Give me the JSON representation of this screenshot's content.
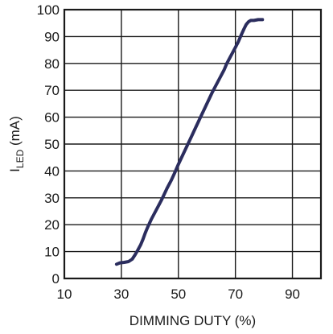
{
  "chart_data": {
    "type": "line",
    "title": "",
    "xlabel": "DIMMING DUTY (%)",
    "ylabel": {
      "main": "I",
      "subscript": "LED",
      "suffix": " (mA)"
    },
    "xlim": [
      10,
      100
    ],
    "ylim": [
      0,
      100
    ],
    "x_ticks": [
      10,
      30,
      50,
      70,
      90
    ],
    "x_grid": [
      10,
      30,
      50,
      70,
      90,
      100
    ],
    "y_ticks": [
      0,
      10,
      20,
      30,
      40,
      50,
      60,
      70,
      80,
      90,
      100
    ],
    "grid": true,
    "legend": "none",
    "line_color": "#2b2d5e",
    "series": [
      {
        "x": [
          28.3,
          29.5,
          31.0,
          32.5,
          33.8,
          34.8,
          35.8,
          36.8,
          37.6,
          38.4,
          39.2,
          40.5,
          42.0,
          44.0,
          46.0,
          47.5,
          48.8,
          50.0,
          52.0,
          54.0,
          56.0,
          58.0,
          60.0,
          62.0,
          64.0,
          66.0,
          67.0,
          68.0,
          70.0,
          71.0,
          72.0,
          73.0,
          73.8,
          74.6,
          75.4,
          76.5,
          78.0,
          79.5
        ],
        "y": [
          5.3,
          5.8,
          6.0,
          6.3,
          7.2,
          8.8,
          10.6,
          12.6,
          14.6,
          17.0,
          19.0,
          22.0,
          25.0,
          29.0,
          33.5,
          36.5,
          39.5,
          42.5,
          47.0,
          51.5,
          56.0,
          60.5,
          65.0,
          69.5,
          73.5,
          77.5,
          80.0,
          82.0,
          86.0,
          88.0,
          90.5,
          92.8,
          94.5,
          95.5,
          96.0,
          96.0,
          96.3,
          96.3
        ]
      }
    ]
  }
}
